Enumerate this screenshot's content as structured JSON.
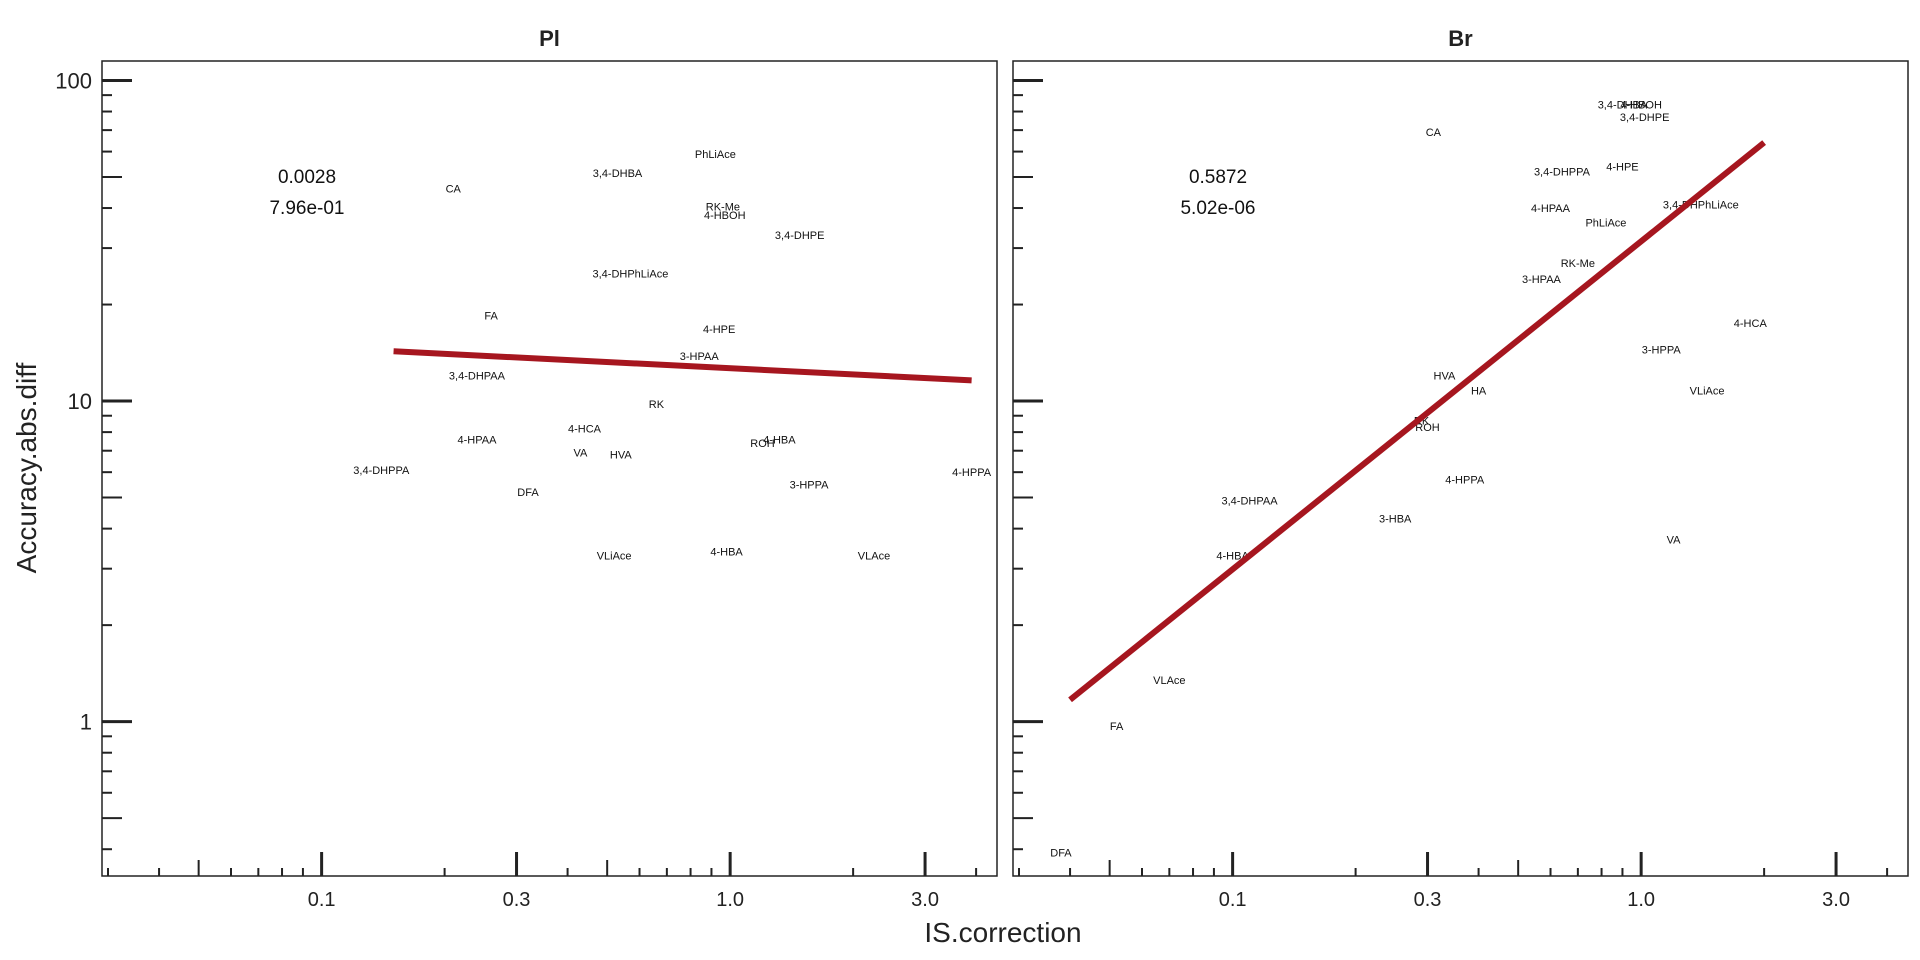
{
  "chart_data": {
    "type": "scatter",
    "xlabel": "IS.correction",
    "ylabel": "Accuracy.abs.diff",
    "x_scale": "log",
    "y_scale": "log",
    "xlim": [
      0.029,
      4.5
    ],
    "ylim": [
      0.33,
      115
    ],
    "x_ticks": [
      {
        "value": 0.1,
        "label": "0.1"
      },
      {
        "value": 0.3,
        "label": "0.3"
      },
      {
        "value": 1.0,
        "label": "1.0"
      },
      {
        "value": 3.0,
        "label": "3.0"
      }
    ],
    "y_ticks": [
      {
        "value": 1,
        "label": "1"
      },
      {
        "value": 10,
        "label": "10"
      },
      {
        "value": 100,
        "label": "100"
      }
    ],
    "grid": false,
    "line_color": "#a6161f",
    "panels": [
      {
        "title": "Pl",
        "r2": "0.0028",
        "pvalue": "7.96e-01",
        "fit_line": {
          "x": [
            0.15,
            3.9
          ],
          "y": [
            14.3,
            11.6
          ]
        },
        "points": [
          {
            "label": "CA",
            "x": 0.21,
            "y": 46
          },
          {
            "label": "3,4-DHBA",
            "x": 0.53,
            "y": 51.5
          },
          {
            "label": "PhLiAce",
            "x": 0.92,
            "y": 59
          },
          {
            "label": "RK-Me",
            "x": 0.96,
            "y": 40.5
          },
          {
            "label": "4-HBOH",
            "x": 0.97,
            "y": 38
          },
          {
            "label": "3,4-DHPE",
            "x": 1.48,
            "y": 33
          },
          {
            "label": "3,4-DHPhLiAce",
            "x": 0.57,
            "y": 25
          },
          {
            "label": "FA",
            "x": 0.26,
            "y": 18.5
          },
          {
            "label": "4-HPE",
            "x": 0.94,
            "y": 16.8
          },
          {
            "label": "3-HPAA",
            "x": 0.84,
            "y": 13.8
          },
          {
            "label": "3,4-DHPAA",
            "x": 0.24,
            "y": 12
          },
          {
            "label": "RK",
            "x": 0.66,
            "y": 9.8
          },
          {
            "label": "4-HCA",
            "x": 0.44,
            "y": 8.2
          },
          {
            "label": "4-HPAA",
            "x": 0.24,
            "y": 7.6
          },
          {
            "label": "VA",
            "x": 0.43,
            "y": 6.9
          },
          {
            "label": "HVA",
            "x": 0.54,
            "y": 6.8
          },
          {
            "label": "ROH",
            "x": 1.2,
            "y": 7.4
          },
          {
            "label": "4-HBA",
            "x": 1.32,
            "y": 7.6
          },
          {
            "label": "3,4-DHPPA",
            "x": 0.14,
            "y": 6.1
          },
          {
            "label": "4-HPPA",
            "x": 3.9,
            "y": 6.0
          },
          {
            "label": "3-HPPA",
            "x": 1.56,
            "y": 5.5
          },
          {
            "label": "DFA",
            "x": 0.32,
            "y": 5.2
          },
          {
            "label": "VLiAce",
            "x": 0.52,
            "y": 3.3
          },
          {
            "label": "4-HBA",
            "x": 0.98,
            "y": 3.4
          },
          {
            "label": "VLAce",
            "x": 2.25,
            "y": 3.3
          }
        ]
      },
      {
        "title": "Br",
        "r2": "0.5872",
        "pvalue": "5.02e-06",
        "fit_line": {
          "x": [
            0.04,
            2.0
          ],
          "y": [
            1.17,
            64
          ]
        },
        "points": [
          {
            "label": "3,4-DHBA",
            "x": 0.9,
            "y": 84
          },
          {
            "label": "4-HBOH",
            "x": 1.0,
            "y": 84
          },
          {
            "label": "3,4-DHPE",
            "x": 1.02,
            "y": 77
          },
          {
            "label": "CA",
            "x": 0.31,
            "y": 69
          },
          {
            "label": "4-HPE",
            "x": 0.9,
            "y": 54
          },
          {
            "label": "3,4-DHPPA",
            "x": 0.64,
            "y": 52
          },
          {
            "label": "4-HPAA",
            "x": 0.6,
            "y": 40
          },
          {
            "label": "3,4-DHPhLiAce",
            "x": 1.4,
            "y": 41
          },
          {
            "label": "PhLiAce",
            "x": 0.82,
            "y": 36
          },
          {
            "label": "RK-Me",
            "x": 0.7,
            "y": 27
          },
          {
            "label": "3-HPAA",
            "x": 0.57,
            "y": 24
          },
          {
            "label": "4-HCA",
            "x": 1.85,
            "y": 17.5
          },
          {
            "label": "3-HPPA",
            "x": 1.12,
            "y": 14.5
          },
          {
            "label": "HVA",
            "x": 0.33,
            "y": 12
          },
          {
            "label": "HA",
            "x": 0.4,
            "y": 10.8
          },
          {
            "label": "VLiAce",
            "x": 1.45,
            "y": 10.8
          },
          {
            "label": "RK",
            "x": 0.29,
            "y": 8.7
          },
          {
            "label": "ROH",
            "x": 0.3,
            "y": 8.3
          },
          {
            "label": "4-HPPA",
            "x": 0.37,
            "y": 5.7
          },
          {
            "label": "3,4-DHPAA",
            "x": 0.11,
            "y": 4.9
          },
          {
            "label": "3-HBA",
            "x": 0.25,
            "y": 4.3
          },
          {
            "label": "VA",
            "x": 1.2,
            "y": 3.7
          },
          {
            "label": "4-HBA",
            "x": 0.1,
            "y": 3.3
          },
          {
            "label": "VLAce",
            "x": 0.07,
            "y": 1.35
          },
          {
            "label": "FA",
            "x": 0.052,
            "y": 0.97
          },
          {
            "label": "DFA",
            "x": 0.038,
            "y": 0.39
          }
        ]
      }
    ]
  }
}
